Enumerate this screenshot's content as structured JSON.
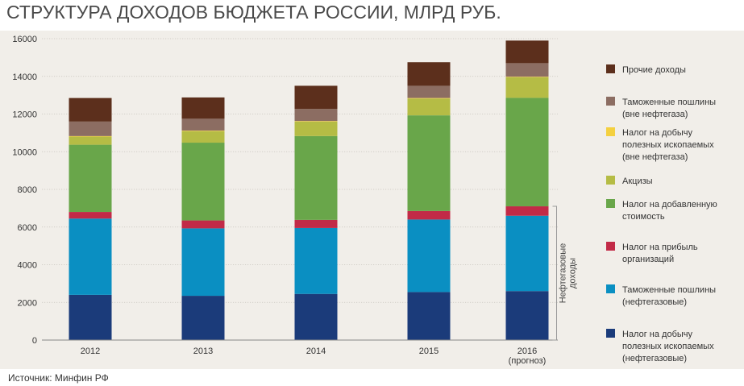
{
  "chart_data": {
    "type": "bar",
    "stacked": true,
    "title": "СТРУКТУРА ДОХОДОВ БЮДЖЕТА РОССИИ, МЛРД РУБ.",
    "categories": [
      [
        "2012"
      ],
      [
        "2013"
      ],
      [
        "2014"
      ],
      [
        "2015"
      ],
      [
        "2016",
        "(прогноз)"
      ]
    ],
    "yticks": [
      0,
      2000,
      4000,
      6000,
      8000,
      10000,
      12000,
      14000,
      16000
    ],
    "ylim": [
      0,
      16000
    ],
    "grid": true,
    "legend_position": "right",
    "series": [
      {
        "name": [
          "Налог на добычу",
          "полезных ископаемых",
          "(нефтегазовые)"
        ],
        "color": "#1b3b7a",
        "values": [
          2400,
          2350,
          2450,
          2550,
          2600
        ]
      },
      {
        "name": [
          "Таможенные пошлины",
          "(нефтегазовые)"
        ],
        "color": "#0a8fc2",
        "values": [
          4050,
          3580,
          3500,
          3850,
          4000
        ]
      },
      {
        "name": [
          "Налог на прибыль",
          "организаций"
        ],
        "color": "#c22a47",
        "values": [
          350,
          420,
          430,
          450,
          500
        ]
      },
      {
        "name": [
          "Налог на добавленную",
          "стоимость"
        ],
        "color": "#69a64a",
        "values": [
          3570,
          4130,
          4450,
          5080,
          5760
        ]
      },
      {
        "name": [
          "Акцизы"
        ],
        "color": "#b5bc45",
        "values": [
          430,
          610,
          770,
          890,
          1090
        ]
      },
      {
        "name": [
          "Налог на добычу",
          "полезных ископаемых",
          "(вне нефтегаза)"
        ],
        "color": "#f4d03f",
        "values": [
          30,
          30,
          30,
          30,
          30
        ]
      },
      {
        "name": [
          "Таможенные пошлины",
          "(вне нефтегаза)"
        ],
        "color": "#8c6d62",
        "values": [
          770,
          630,
          640,
          650,
          720
        ]
      },
      {
        "name": [
          "Прочие доходы"
        ],
        "color": "#5c2f1c",
        "values": [
          1250,
          1130,
          1230,
          1250,
          1200
        ]
      }
    ],
    "bracket_label": [
      "Нефтегазовые",
      "доходы"
    ]
  },
  "source": "Источник: Минфин РФ"
}
